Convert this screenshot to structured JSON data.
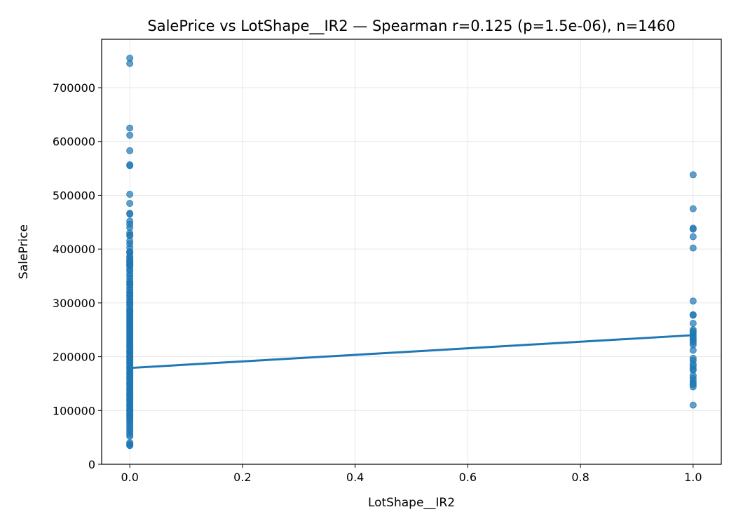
{
  "chart_data": {
    "type": "scatter",
    "title": "SalePrice vs LotShape__IR2 — Spearman r=0.125 (p=1.5e-06), n=1460",
    "xlabel": "LotShape__IR2",
    "ylabel": "SalePrice",
    "xlim": [
      -0.05,
      1.05
    ],
    "ylim": [
      0,
      790000
    ],
    "xticks": [
      0.0,
      0.2,
      0.4,
      0.6,
      0.8,
      1.0
    ],
    "xtick_labels": [
      "0.0",
      "0.2",
      "0.4",
      "0.6",
      "0.8",
      "1.0"
    ],
    "yticks": [
      0,
      100000,
      200000,
      300000,
      400000,
      500000,
      600000,
      700000
    ],
    "ytick_labels": [
      "0",
      "100000",
      "200000",
      "300000",
      "400000",
      "500000",
      "600000",
      "700000"
    ],
    "grid": true,
    "point_color": "#1f77b4",
    "line_color": "#1f77b4",
    "series": [
      {
        "name": "LotShape__IR2 = 0",
        "x": 0,
        "values": [
          755000,
          745000,
          625000,
          611657,
          582933,
          556581,
          555000,
          501837,
          485000,
          466500,
          465000,
          451950,
          446261,
          440000,
          430000,
          426000,
          424870,
          415298,
          410000,
          402861,
          395192,
          394617,
          392500,
          386250,
          385000,
          381000,
          378500,
          377500,
          375000,
          372500,
          370878,
          369900,
          367294,
          361919,
          360000,
          354000,
          350000,
          345000,
          340000,
          337500,
          335000,
          333168,
          328000,
          325000,
          320000,
          319000,
          315000,
          313000,
          310000,
          306000,
          302000,
          300000,
          297000,
          295000,
          290000,
          287000,
          285000,
          282922,
          280000,
          277000,
          275000,
          272000,
          270000,
          267000,
          265000,
          262500,
          260000,
          257500,
          255000,
          253000,
          250000,
          248000,
          245000,
          242000,
          240000,
          237000,
          235000,
          232000,
          230000,
          228000,
          225000,
          222000,
          220000,
          218000,
          215000,
          212000,
          210000,
          208000,
          205000,
          202000,
          200000,
          198000,
          195000,
          192000,
          190000,
          188000,
          185000,
          182000,
          180000,
          178000,
          175000,
          172000,
          170000,
          168000,
          165000,
          162000,
          160000,
          158000,
          155000,
          152000,
          150000,
          148000,
          145000,
          142000,
          140000,
          138000,
          135000,
          132000,
          130000,
          128000,
          125000,
          122000,
          120000,
          118000,
          115000,
          112000,
          110000,
          108000,
          105000,
          102000,
          100000,
          98000,
          95000,
          92000,
          90000,
          88000,
          85000,
          82000,
          80000,
          76000,
          72000,
          68000,
          64000,
          60000,
          55000,
          52000,
          40000,
          37900,
          35311,
          34900
        ]
      },
      {
        "name": "LotShape__IR2 = 1",
        "x": 1,
        "values": [
          538000,
          475000,
          438780,
          437154,
          423000,
          402000,
          303477,
          278000,
          277000,
          262000,
          250000,
          247000,
          244000,
          240000,
          236000,
          233000,
          230000,
          226000,
          222000,
          212000,
          197000,
          193000,
          186000,
          182000,
          177000,
          175000,
          165000,
          160000,
          155000,
          151000,
          148000,
          144000,
          110000
        ]
      }
    ],
    "trend_line": {
      "x": [
        0,
        1
      ],
      "y": [
        179000,
        240000
      ]
    }
  }
}
